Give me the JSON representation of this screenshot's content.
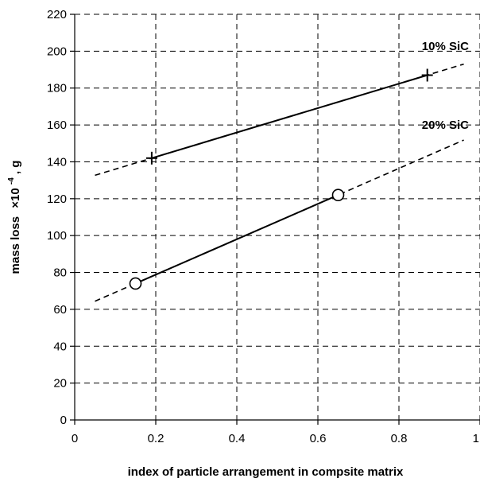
{
  "chart_data": {
    "type": "line",
    "xlabel": "index of particle arrangement in compsite matrix",
    "ylabel_main": "mass loss",
    "ylabel_exp": "×10",
    "ylabel_sup": "-4",
    "ylabel_unit": ", g",
    "xlim": [
      0,
      1
    ],
    "ylim": [
      0,
      220
    ],
    "x_ticks": [
      0,
      0.2,
      0.4,
      0.6,
      0.8,
      1
    ],
    "x_tick_labels": [
      "0",
      "0.2",
      "0.4",
      "0.6",
      "0.8",
      "1"
    ],
    "y_ticks": [
      0,
      20,
      40,
      60,
      80,
      100,
      120,
      140,
      160,
      180,
      200,
      220
    ],
    "y_tick_labels": [
      "0",
      "20",
      "40",
      "60",
      "80",
      "100",
      "120",
      "140",
      "160",
      "180",
      "200",
      "220"
    ],
    "grid": true,
    "series": [
      {
        "name": "10% SiC",
        "marker": "plus",
        "points": [
          {
            "x": 0.19,
            "y": 142
          },
          {
            "x": 0.87,
            "y": 187
          }
        ],
        "fit_solid": {
          "x": [
            0.19,
            0.87
          ],
          "y": [
            142,
            187
          ]
        },
        "fit_dashed_extension": {
          "x": [
            0.05,
            0.96
          ],
          "y": [
            132.7,
            193
          ]
        }
      },
      {
        "name": "20% SiC",
        "marker": "circle",
        "points": [
          {
            "x": 0.15,
            "y": 74
          },
          {
            "x": 0.65,
            "y": 122
          }
        ],
        "fit_solid": {
          "x": [
            0.15,
            0.65
          ],
          "y": [
            74,
            122
          ]
        },
        "fit_dashed_extension": {
          "x": [
            0.05,
            0.96
          ],
          "y": [
            64.4,
            151.8
          ]
        }
      }
    ]
  }
}
